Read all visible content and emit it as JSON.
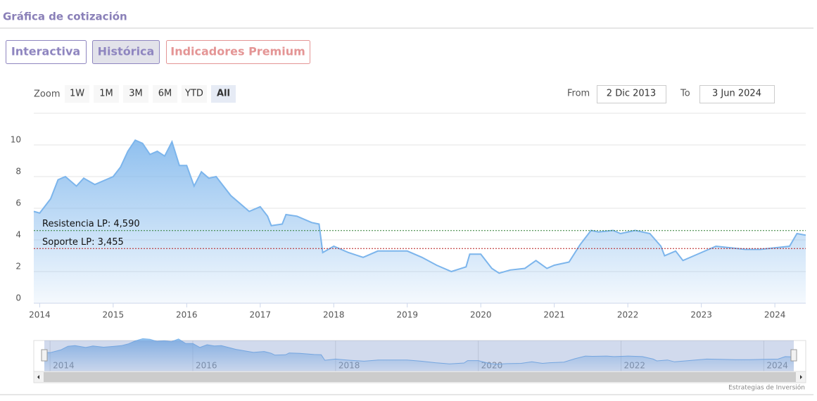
{
  "header": {
    "title": "Gráfica de cotización"
  },
  "tabs": [
    "Interactiva",
    "Histórica",
    "Indicadores Premium"
  ],
  "zoom": {
    "label": "Zoom",
    "buttons": [
      "1W",
      "1M",
      "3M",
      "6M",
      "YTD",
      "All"
    ],
    "selected": "All"
  },
  "range": {
    "from_label": "From",
    "from": "2 Dic 2013",
    "to_label": "To",
    "to": "3 Jun 2024"
  },
  "credits": "Estrategias de Inversión",
  "chart_data": {
    "type": "area",
    "color": "#7cb5ec",
    "x": [
      2013.92,
      2014.0,
      2014.15,
      2014.25,
      2014.35,
      2014.5,
      2014.6,
      2014.75,
      2014.9,
      2015.0,
      2015.1,
      2015.2,
      2015.3,
      2015.4,
      2015.5,
      2015.6,
      2015.7,
      2015.8,
      2015.9,
      2016.0,
      2016.1,
      2016.2,
      2016.3,
      2016.4,
      2016.5,
      2016.6,
      2016.75,
      2016.85,
      2017.0,
      2017.1,
      2017.15,
      2017.3,
      2017.35,
      2017.5,
      2017.7,
      2017.8,
      2017.85,
      2018.0,
      2018.2,
      2018.4,
      2018.6,
      2018.8,
      2019.0,
      2019.2,
      2019.4,
      2019.6,
      2019.8,
      2019.85,
      2020.0,
      2020.15,
      2020.25,
      2020.4,
      2020.6,
      2020.75,
      2020.9,
      2021.0,
      2021.2,
      2021.35,
      2021.5,
      2021.6,
      2021.8,
      2021.9,
      2022.1,
      2022.3,
      2022.45,
      2022.5,
      2022.65,
      2022.75,
      2022.9,
      2023.0,
      2023.2,
      2023.4,
      2023.6,
      2023.8,
      2024.0,
      2024.2,
      2024.3,
      2024.42
    ],
    "values": [
      5.8,
      5.7,
      6.6,
      7.8,
      8.0,
      7.4,
      7.9,
      7.5,
      7.8,
      8.0,
      8.6,
      9.6,
      10.3,
      10.1,
      9.4,
      9.6,
      9.3,
      10.2,
      8.7,
      8.7,
      7.4,
      8.3,
      7.9,
      8.0,
      7.4,
      6.8,
      6.2,
      5.8,
      6.1,
      5.5,
      4.9,
      5.0,
      5.6,
      5.5,
      5.1,
      5.0,
      3.2,
      3.6,
      3.2,
      2.9,
      3.3,
      3.3,
      3.3,
      2.9,
      2.4,
      2.0,
      2.3,
      3.1,
      3.1,
      2.2,
      1.9,
      2.1,
      2.2,
      2.7,
      2.2,
      2.4,
      2.6,
      3.7,
      4.6,
      4.5,
      4.6,
      4.4,
      4.6,
      4.4,
      3.6,
      3.0,
      3.3,
      2.7,
      3.0,
      3.2,
      3.6,
      3.5,
      3.4,
      3.4,
      3.5,
      3.6,
      4.4,
      4.3
    ],
    "xlim": [
      2013.92,
      2024.42
    ],
    "xticks": [
      2014,
      2015,
      2016,
      2017,
      2018,
      2019,
      2020,
      2021,
      2022,
      2023,
      2024
    ],
    "ylim": [
      0,
      12
    ],
    "yticks": [
      0,
      2,
      4,
      6,
      8,
      10
    ],
    "grid": true,
    "reference_lines": [
      {
        "label": "Resistencia LP: 4,590",
        "value": 4.59,
        "color": "#2e7d32"
      },
      {
        "label": "Soporte LP: 3,455",
        "value": 3.455,
        "color": "#b71c1c"
      }
    ],
    "navigator_xticks": [
      2014,
      2016,
      2018,
      2020,
      2022,
      2024
    ]
  }
}
